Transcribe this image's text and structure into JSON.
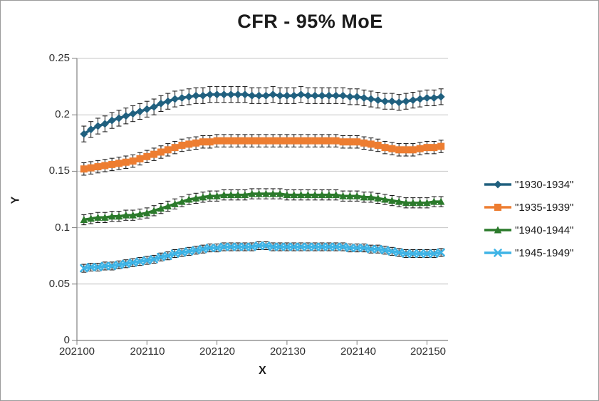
{
  "chart_data": {
    "type": "line",
    "title": "CFR - 95% MoE",
    "xlabel": "X",
    "ylabel": "Y",
    "x_ticks": [
      "202100",
      "202110",
      "202120",
      "202130",
      "202140",
      "202150"
    ],
    "x_tick_values": [
      202100,
      202110,
      202120,
      202130,
      202140,
      202150
    ],
    "y_ticks": [
      "0.25",
      "0.2",
      "0.15",
      "0.1",
      "0.05",
      "0"
    ],
    "y_tick_values": [
      0.25,
      0.2,
      0.15,
      0.1,
      0.05,
      0
    ],
    "xlim": [
      202100,
      202153
    ],
    "ylim": [
      0,
      0.25
    ],
    "x_start": 202101,
    "x_step": 1,
    "grid": "horizontal",
    "legend_position": "right",
    "error_bar_color": "#111111",
    "gridline_color": "#c6c6c6",
    "axis_color": "#808080",
    "series": [
      {
        "name": "\"1930-1934\"",
        "color": "#20607f",
        "marker": "diamond",
        "moe": 0.007,
        "values": [
          0.183,
          0.187,
          0.19,
          0.192,
          0.195,
          0.197,
          0.199,
          0.201,
          0.203,
          0.205,
          0.207,
          0.21,
          0.212,
          0.214,
          0.215,
          0.216,
          0.217,
          0.217,
          0.218,
          0.218,
          0.218,
          0.218,
          0.218,
          0.218,
          0.217,
          0.217,
          0.217,
          0.218,
          0.217,
          0.217,
          0.217,
          0.218,
          0.217,
          0.217,
          0.217,
          0.217,
          0.217,
          0.217,
          0.216,
          0.216,
          0.215,
          0.214,
          0.213,
          0.212,
          0.212,
          0.211,
          0.212,
          0.213,
          0.214,
          0.215,
          0.215,
          0.216
        ]
      },
      {
        "name": "\"1935-1939\"",
        "color": "#ed7d31",
        "marker": "square",
        "moe": 0.0055,
        "values": [
          0.152,
          0.153,
          0.154,
          0.155,
          0.156,
          0.157,
          0.158,
          0.159,
          0.161,
          0.163,
          0.165,
          0.167,
          0.169,
          0.171,
          0.173,
          0.174,
          0.175,
          0.176,
          0.176,
          0.177,
          0.177,
          0.177,
          0.177,
          0.177,
          0.177,
          0.177,
          0.177,
          0.177,
          0.177,
          0.177,
          0.177,
          0.177,
          0.177,
          0.177,
          0.177,
          0.177,
          0.177,
          0.176,
          0.176,
          0.176,
          0.175,
          0.174,
          0.173,
          0.171,
          0.17,
          0.169,
          0.169,
          0.169,
          0.17,
          0.171,
          0.171,
          0.172
        ]
      },
      {
        "name": "\"1940-1944\"",
        "color": "#2b7a2b",
        "marker": "triangle",
        "moe": 0.0045,
        "values": [
          0.107,
          0.108,
          0.109,
          0.109,
          0.11,
          0.11,
          0.111,
          0.111,
          0.112,
          0.113,
          0.115,
          0.117,
          0.119,
          0.121,
          0.123,
          0.125,
          0.126,
          0.127,
          0.128,
          0.128,
          0.129,
          0.129,
          0.129,
          0.129,
          0.13,
          0.13,
          0.13,
          0.13,
          0.13,
          0.129,
          0.129,
          0.129,
          0.129,
          0.129,
          0.129,
          0.129,
          0.129,
          0.128,
          0.128,
          0.128,
          0.127,
          0.127,
          0.126,
          0.125,
          0.124,
          0.123,
          0.122,
          0.122,
          0.122,
          0.122,
          0.123,
          0.123
        ]
      },
      {
        "name": "\"1945-1949\"",
        "color": "#3fb4e6",
        "marker": "x",
        "moe": 0.0035,
        "values": [
          0.064,
          0.065,
          0.065,
          0.066,
          0.066,
          0.067,
          0.068,
          0.069,
          0.07,
          0.071,
          0.072,
          0.074,
          0.075,
          0.077,
          0.078,
          0.079,
          0.08,
          0.081,
          0.082,
          0.082,
          0.083,
          0.083,
          0.083,
          0.083,
          0.083,
          0.084,
          0.084,
          0.083,
          0.083,
          0.083,
          0.083,
          0.083,
          0.083,
          0.083,
          0.083,
          0.083,
          0.083,
          0.083,
          0.082,
          0.082,
          0.082,
          0.081,
          0.081,
          0.08,
          0.079,
          0.078,
          0.077,
          0.077,
          0.077,
          0.077,
          0.077,
          0.078
        ]
      }
    ]
  }
}
